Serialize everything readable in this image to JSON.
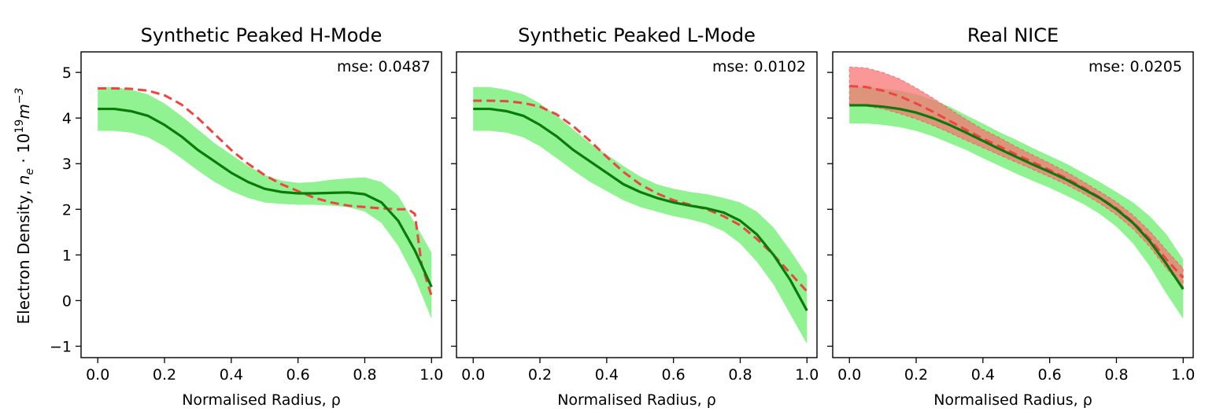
{
  "figure": {
    "ylabel": "Electron Density, n_e · 10^19 m^-3",
    "ylabel_parts": {
      "prefix": "Electron Density, ",
      "ne": "n",
      "ne_sub": "e",
      "dot": " · 10",
      "exp": "19",
      "m": "m",
      "m_exp": "−3"
    }
  },
  "chart_data": [
    {
      "type": "line",
      "title": "Synthetic Peaked H-Mode",
      "annotation": "mse: 0.0487",
      "xlabel": "Normalised Radius, ρ",
      "xlim": [
        -0.05,
        1.03
      ],
      "ylim": [
        -1.25,
        5.45
      ],
      "xticks": [
        "0.0",
        "0.2",
        "0.4",
        "0.6",
        "0.8",
        "1.0"
      ],
      "yticks": [
        "−1",
        "0",
        "1",
        "2",
        "3",
        "4",
        "5"
      ],
      "series": [
        {
          "role": "prediction",
          "color": "#0a7a0a",
          "band_color": "#7cf07c",
          "x": [
            0.0,
            0.05,
            0.1,
            0.15,
            0.2,
            0.25,
            0.3,
            0.35,
            0.4,
            0.45,
            0.5,
            0.55,
            0.6,
            0.65,
            0.7,
            0.75,
            0.8,
            0.85,
            0.9,
            0.95,
            1.0
          ],
          "y": [
            4.2,
            4.2,
            4.15,
            4.05,
            3.85,
            3.6,
            3.3,
            3.05,
            2.8,
            2.6,
            2.45,
            2.38,
            2.35,
            2.35,
            2.36,
            2.37,
            2.33,
            2.15,
            1.75,
            1.1,
            0.3
          ],
          "lower": [
            3.72,
            3.72,
            3.68,
            3.58,
            3.38,
            3.12,
            2.85,
            2.6,
            2.4,
            2.25,
            2.15,
            2.12,
            2.1,
            2.1,
            2.08,
            2.05,
            1.95,
            1.7,
            1.2,
            0.5,
            -0.4
          ],
          "upper": [
            4.68,
            4.68,
            4.62,
            4.52,
            4.32,
            4.05,
            3.75,
            3.45,
            3.2,
            2.95,
            2.75,
            2.63,
            2.58,
            2.6,
            2.65,
            2.68,
            2.7,
            2.6,
            2.3,
            1.7,
            1.05
          ]
        },
        {
          "role": "reference",
          "color": "#ee4444",
          "dashed": true,
          "x": [
            0.0,
            0.05,
            0.1,
            0.15,
            0.2,
            0.25,
            0.3,
            0.35,
            0.4,
            0.45,
            0.5,
            0.55,
            0.6,
            0.65,
            0.7,
            0.75,
            0.8,
            0.85,
            0.9,
            0.93,
            0.95,
            0.97,
            1.0
          ],
          "y": [
            4.65,
            4.65,
            4.64,
            4.6,
            4.5,
            4.3,
            4.0,
            3.65,
            3.3,
            3.0,
            2.75,
            2.55,
            2.4,
            2.25,
            2.15,
            2.08,
            2.05,
            2.02,
            2.0,
            2.0,
            1.9,
            0.8,
            0.1
          ]
        }
      ]
    },
    {
      "type": "line",
      "title": "Synthetic Peaked L-Mode",
      "annotation": "mse: 0.0102",
      "xlabel": "Normalised Radius, ρ",
      "xlim": [
        -0.05,
        1.03
      ],
      "ylim": [
        -1.25,
        5.45
      ],
      "xticks": [
        "0.0",
        "0.2",
        "0.4",
        "0.6",
        "0.8",
        "1.0"
      ],
      "yticks": [
        "−1",
        "0",
        "1",
        "2",
        "3",
        "4",
        "5"
      ],
      "series": [
        {
          "role": "prediction",
          "color": "#0a7a0a",
          "band_color": "#7cf07c",
          "x": [
            0.0,
            0.05,
            0.1,
            0.15,
            0.2,
            0.25,
            0.3,
            0.35,
            0.4,
            0.45,
            0.5,
            0.55,
            0.6,
            0.65,
            0.7,
            0.75,
            0.8,
            0.85,
            0.9,
            0.95,
            1.0
          ],
          "y": [
            4.2,
            4.2,
            4.15,
            4.05,
            3.85,
            3.6,
            3.3,
            3.05,
            2.8,
            2.55,
            2.38,
            2.25,
            2.15,
            2.08,
            2.02,
            1.93,
            1.75,
            1.45,
            1.0,
            0.45,
            -0.22
          ],
          "lower": [
            3.72,
            3.72,
            3.68,
            3.58,
            3.38,
            3.12,
            2.85,
            2.6,
            2.4,
            2.2,
            2.05,
            1.95,
            1.85,
            1.78,
            1.68,
            1.52,
            1.25,
            0.85,
            0.35,
            -0.3,
            -0.95
          ],
          "upper": [
            4.68,
            4.68,
            4.62,
            4.52,
            4.32,
            4.05,
            3.75,
            3.45,
            3.2,
            2.95,
            2.72,
            2.55,
            2.45,
            2.38,
            2.33,
            2.25,
            2.15,
            1.95,
            1.6,
            1.1,
            0.55
          ]
        },
        {
          "role": "reference",
          "color": "#ee4444",
          "dashed": true,
          "x": [
            0.0,
            0.05,
            0.1,
            0.15,
            0.2,
            0.25,
            0.3,
            0.35,
            0.4,
            0.45,
            0.5,
            0.55,
            0.6,
            0.65,
            0.7,
            0.75,
            0.8,
            0.85,
            0.9,
            0.95,
            1.0
          ],
          "y": [
            4.38,
            4.38,
            4.37,
            4.33,
            4.25,
            4.08,
            3.82,
            3.5,
            3.15,
            2.82,
            2.55,
            2.35,
            2.2,
            2.1,
            2.0,
            1.85,
            1.65,
            1.35,
            1.0,
            0.6,
            0.2
          ]
        }
      ]
    },
    {
      "type": "line",
      "title": "Real NICE",
      "annotation": "mse: 0.0205",
      "xlabel": "Normalised Radius, ρ",
      "xlim": [
        -0.05,
        1.03
      ],
      "ylim": [
        -1.25,
        5.45
      ],
      "xticks": [
        "0.0",
        "0.2",
        "0.4",
        "0.6",
        "0.8",
        "1.0"
      ],
      "yticks": [
        "−1",
        "0",
        "1",
        "2",
        "3",
        "4",
        "5"
      ],
      "series": [
        {
          "role": "prediction",
          "color": "#0a7a0a",
          "band_color": "#7cf07c",
          "x": [
            0.0,
            0.05,
            0.1,
            0.15,
            0.2,
            0.25,
            0.3,
            0.35,
            0.4,
            0.45,
            0.5,
            0.55,
            0.6,
            0.65,
            0.7,
            0.75,
            0.8,
            0.85,
            0.9,
            0.95,
            1.0
          ],
          "y": [
            4.28,
            4.28,
            4.25,
            4.2,
            4.12,
            4.0,
            3.85,
            3.68,
            3.5,
            3.32,
            3.15,
            2.98,
            2.82,
            2.65,
            2.45,
            2.25,
            2.0,
            1.7,
            1.3,
            0.8,
            0.25
          ],
          "lower": [
            3.88,
            3.88,
            3.85,
            3.8,
            3.72,
            3.6,
            3.45,
            3.3,
            3.12,
            2.95,
            2.78,
            2.62,
            2.47,
            2.3,
            2.12,
            1.9,
            1.62,
            1.25,
            0.75,
            0.15,
            -0.4
          ],
          "upper": [
            4.68,
            4.68,
            4.65,
            4.6,
            4.52,
            4.4,
            4.25,
            4.06,
            3.88,
            3.69,
            3.52,
            3.34,
            3.17,
            3.0,
            2.8,
            2.6,
            2.38,
            2.15,
            1.85,
            1.45,
            0.9
          ]
        },
        {
          "role": "reference",
          "color": "#ee4444",
          "band_color": "#f87474",
          "dashed": true,
          "x": [
            0.0,
            0.05,
            0.1,
            0.15,
            0.2,
            0.25,
            0.3,
            0.35,
            0.4,
            0.45,
            0.5,
            0.55,
            0.6,
            0.65,
            0.7,
            0.75,
            0.8,
            0.85,
            0.9,
            0.95,
            1.0
          ],
          "y": [
            4.7,
            4.68,
            4.6,
            4.48,
            4.32,
            4.14,
            3.94,
            3.74,
            3.55,
            3.38,
            3.2,
            3.03,
            2.86,
            2.68,
            2.48,
            2.26,
            2.02,
            1.72,
            1.35,
            0.9,
            0.5
          ],
          "lower": [
            4.28,
            4.26,
            4.2,
            4.1,
            3.98,
            3.84,
            3.68,
            3.51,
            3.35,
            3.19,
            3.03,
            2.87,
            2.71,
            2.54,
            2.35,
            2.13,
            1.88,
            1.57,
            1.18,
            0.7,
            0.3
          ],
          "upper": [
            5.12,
            5.1,
            5.0,
            4.86,
            4.66,
            4.44,
            4.2,
            3.97,
            3.75,
            3.57,
            3.37,
            3.19,
            3.01,
            2.82,
            2.61,
            2.39,
            2.16,
            1.87,
            1.52,
            1.1,
            0.7
          ]
        }
      ]
    }
  ]
}
